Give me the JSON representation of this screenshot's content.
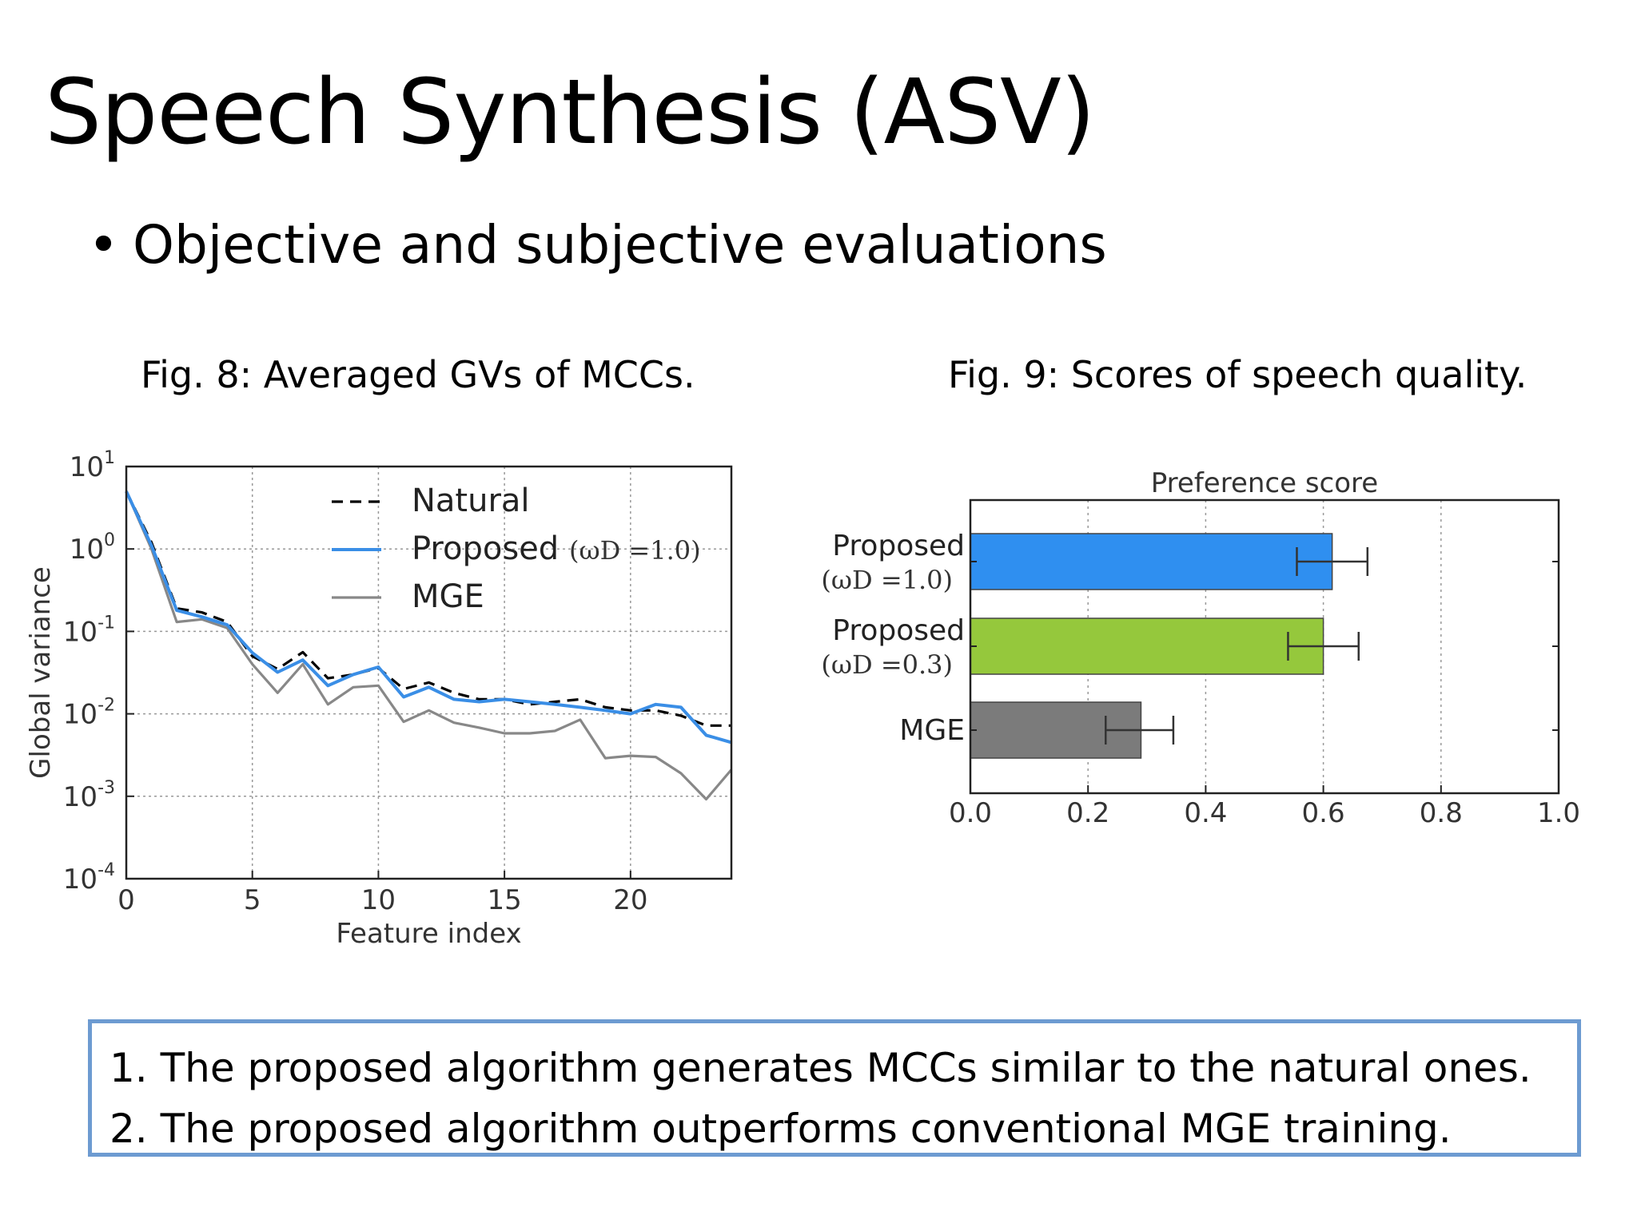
{
  "slide": {
    "title": "Speech Synthesis (ASV)",
    "bullet": "Objective and subjective evaluations",
    "bullet_symbol": "•"
  },
  "captions": {
    "fig8": "Fig. 8: Averaged GVs of MCCs.",
    "fig9": "Fig. 9: Scores of speech quality."
  },
  "summary": {
    "line1": "1. The proposed algorithm generates MCCs similar to the natural ones.",
    "line2": "2. The proposed algorithm outperforms conventional MGE training."
  },
  "chart_data": [
    {
      "type": "line",
      "title": "",
      "xlabel": "Feature index",
      "ylabel": "Global variance",
      "yscale": "log",
      "xlim": [
        0,
        24
      ],
      "ylim": [
        0.0001,
        10
      ],
      "xticks": [
        "0",
        "5",
        "10",
        "15",
        "20"
      ],
      "yticks": [
        "10^1",
        "10^0",
        "10^-1",
        "10^-2",
        "10^-3",
        "10^-4"
      ],
      "grid": true,
      "legend_position": "top-right",
      "x": [
        0,
        1,
        2,
        3,
        4,
        5,
        6,
        7,
        8,
        9,
        10,
        11,
        12,
        13,
        14,
        15,
        16,
        17,
        18,
        19,
        20,
        21,
        22,
        23,
        24
      ],
      "series": [
        {
          "name": "Natural",
          "style": "dashed",
          "color": "#000000",
          "values": [
            5.0,
            1.2,
            0.19,
            0.17,
            0.13,
            0.05,
            0.035,
            0.056,
            0.027,
            0.03,
            0.036,
            0.02,
            0.024,
            0.018,
            0.015,
            0.015,
            0.013,
            0.014,
            0.015,
            0.012,
            0.011,
            0.011,
            0.0095,
            0.0072,
            0.0072
          ]
        },
        {
          "name": "Proposed",
          "legend_suffix": "(ωD =1.0)",
          "style": "solid",
          "color": "#3a8ee6",
          "values": [
            5.0,
            1.1,
            0.18,
            0.15,
            0.12,
            0.055,
            0.032,
            0.045,
            0.022,
            0.03,
            0.037,
            0.016,
            0.021,
            0.015,
            0.014,
            0.015,
            0.014,
            0.013,
            0.012,
            0.011,
            0.01,
            0.013,
            0.012,
            0.0055,
            0.0045
          ]
        },
        {
          "name": "MGE",
          "style": "solid",
          "color": "#888888",
          "values": [
            5.0,
            1.0,
            0.13,
            0.14,
            0.11,
            0.04,
            0.018,
            0.04,
            0.013,
            0.021,
            0.022,
            0.008,
            0.011,
            0.0078,
            0.0068,
            0.0058,
            0.0058,
            0.0062,
            0.0085,
            0.0029,
            0.0031,
            0.003,
            0.0019,
            0.00092,
            0.0021
          ]
        }
      ]
    },
    {
      "type": "bar",
      "orientation": "horizontal",
      "title": "Preference score",
      "xlim": [
        0,
        1.0
      ],
      "xticks": [
        "0.0",
        "0.2",
        "0.4",
        "0.6",
        "0.8",
        "1.0"
      ],
      "grid": true,
      "categories": [
        {
          "label": "Proposed",
          "sub": "(ωD =1.0)",
          "value": 0.615,
          "err_low": 0.555,
          "err_high": 0.675,
          "color": "#2f8ff0"
        },
        {
          "label": "Proposed",
          "sub": "(ωD =0.3)",
          "value": 0.6,
          "err_low": 0.54,
          "err_high": 0.66,
          "color": "#95c83c"
        },
        {
          "label": "MGE",
          "sub": "",
          "value": 0.29,
          "err_low": 0.23,
          "err_high": 0.345,
          "color": "#7b7b7b"
        }
      ]
    }
  ]
}
